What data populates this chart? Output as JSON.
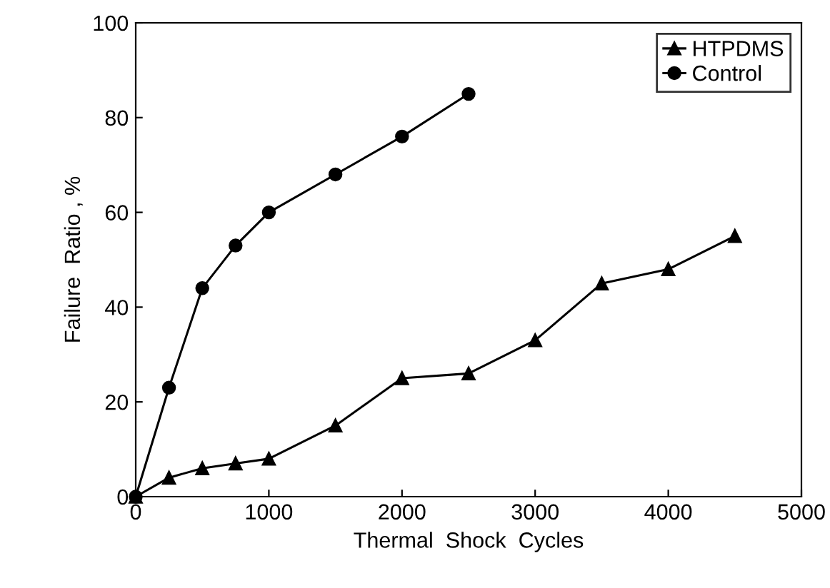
{
  "chart_data": {
    "type": "line",
    "xlabel": "Thermal  Shock  Cycles",
    "ylabel": "Failure  Ratio , %",
    "xlim": [
      0,
      5000
    ],
    "xticks": [
      0,
      1000,
      2000,
      3000,
      4000,
      5000
    ],
    "ylim": [
      0,
      100
    ],
    "yticks": [
      0,
      20,
      40,
      60,
      80,
      100
    ],
    "grid": false,
    "legend": "top right",
    "series": [
      {
        "name": "HTPDMS",
        "color": "#000000",
        "marker": "triangle",
        "x": [
          0,
          250,
          500,
          750,
          1000,
          1500,
          2000,
          2500,
          3000,
          3500,
          4000,
          4500
        ],
        "values": [
          0,
          4,
          6,
          7,
          8,
          15,
          25,
          26,
          33,
          45,
          48,
          55
        ]
      },
      {
        "name": "Control",
        "color": "#000000",
        "marker": "circle",
        "x": [
          0,
          250,
          500,
          750,
          1000,
          1500,
          2000,
          2500
        ],
        "values": [
          0,
          23,
          44,
          53,
          60,
          68,
          76,
          85
        ]
      }
    ]
  }
}
